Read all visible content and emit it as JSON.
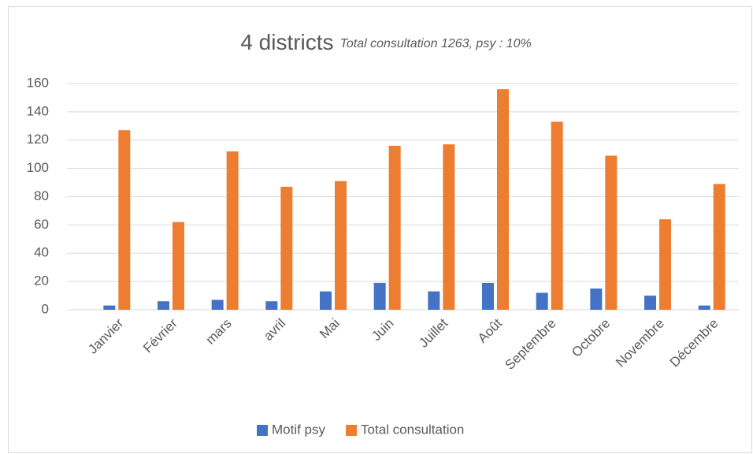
{
  "chart_data": {
    "type": "bar",
    "title": "4 districts",
    "subtitle": "Total consultation 1263, psy : 10%",
    "categories": [
      "Janvier",
      "Février",
      "mars",
      "avril",
      "Mai",
      "Juin",
      "Juillet",
      "Août",
      "Septembre",
      "Octobre",
      "Novembre",
      "Décembre"
    ],
    "series": [
      {
        "name": "Motif psy",
        "color": "#4472c4",
        "values": [
          3,
          6,
          7,
          6,
          13,
          19,
          13,
          19,
          12,
          15,
          10,
          3
        ]
      },
      {
        "name": "Total consultation",
        "color": "#ed7d31",
        "values": [
          127,
          62,
          112,
          87,
          91,
          116,
          117,
          156,
          133,
          109,
          64,
          89
        ]
      }
    ],
    "ylim": [
      0,
      160
    ],
    "yticks": [
      0,
      20,
      40,
      60,
      80,
      100,
      120,
      140,
      160
    ],
    "grid": true,
    "legend": "bottom"
  }
}
